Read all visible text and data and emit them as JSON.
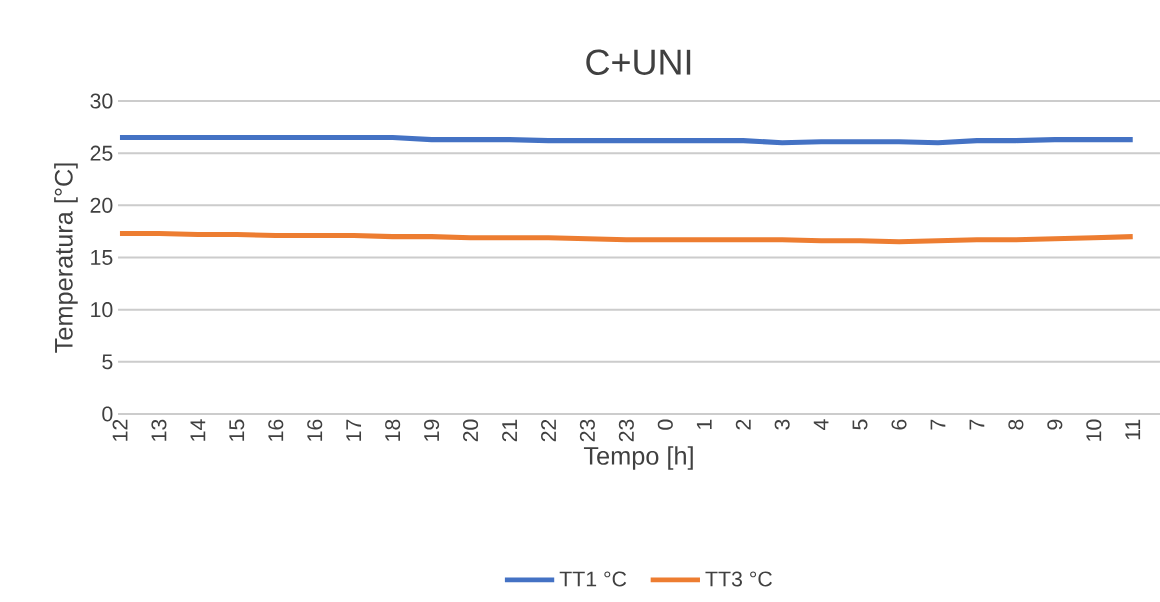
{
  "chart_data": {
    "type": "line",
    "title": "C+UNI",
    "xlabel": "Tempo [h]",
    "ylabel": "Temperatura [°C]",
    "categories": [
      "12",
      "13",
      "14",
      "15",
      "16",
      "16",
      "17",
      "18",
      "19",
      "20",
      "21",
      "22",
      "23",
      "23",
      "0",
      "1",
      "2",
      "3",
      "4",
      "5",
      "6",
      "7",
      "7",
      "8",
      "9",
      "10",
      "11"
    ],
    "series": [
      {
        "name": "TT1 °C",
        "color": "#4472c4",
        "values": [
          26.5,
          26.5,
          26.5,
          26.5,
          26.5,
          26.5,
          26.5,
          26.5,
          26.3,
          26.3,
          26.3,
          26.2,
          26.2,
          26.2,
          26.2,
          26.2,
          26.2,
          26.0,
          26.1,
          26.1,
          26.1,
          26.0,
          26.2,
          26.2,
          26.3,
          26.3,
          26.3
        ]
      },
      {
        "name": "TT3 °C",
        "color": "#ed7d31",
        "values": [
          17.3,
          17.3,
          17.2,
          17.2,
          17.1,
          17.1,
          17.1,
          17.0,
          17.0,
          16.9,
          16.9,
          16.9,
          16.8,
          16.7,
          16.7,
          16.7,
          16.7,
          16.7,
          16.6,
          16.6,
          16.5,
          16.6,
          16.7,
          16.7,
          16.8,
          16.9,
          17.0
        ]
      }
    ],
    "ylim": [
      0,
      30
    ],
    "yticks": [
      0,
      5,
      10,
      15,
      20,
      25,
      30
    ],
    "grid": "y",
    "legend": "bottom",
    "marker": "none",
    "line_style": "solid"
  }
}
